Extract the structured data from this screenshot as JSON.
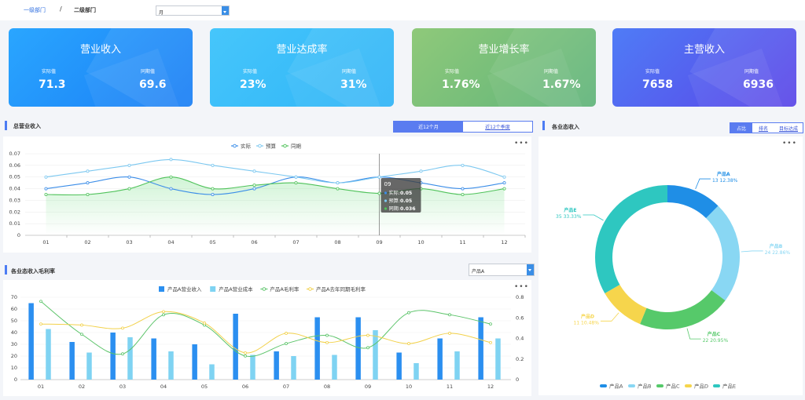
{
  "breadcrumb": {
    "level1": "一级部门",
    "sep": "/",
    "level2": "二级部门"
  },
  "period_select": {
    "value": "月"
  },
  "kpis": [
    {
      "title": "营业收入",
      "actual_label": "实际值",
      "yoy_label": "同期值",
      "actual": "71.3",
      "yoy": "69.6",
      "color_from": "#2aa6ff",
      "color_to": "#1a7ef5"
    },
    {
      "title": "营业达成率",
      "actual_label": "实际值",
      "yoy_label": "同期值",
      "actual": "23%",
      "yoy": "31%",
      "color_from": "#46c6fb",
      "color_to": "#2fb4f7"
    },
    {
      "title": "营业增长率",
      "actual_label": "实际值",
      "yoy_label": "同期值",
      "actual": "1.76%",
      "yoy": "1.67%",
      "color_from": "#8fc97a",
      "color_to": "#5fb47a"
    },
    {
      "title": "主营收入",
      "actual_label": "实际值",
      "yoy_label": "同期值",
      "actual": "7658",
      "yoy": "6936",
      "color_from": "#4f7cf6",
      "color_to": "#5a45e8"
    }
  ],
  "total_revenue": {
    "title": "总营业收入",
    "tabs": [
      {
        "label": "近12个月",
        "active": true
      },
      {
        "label": "近12个季度",
        "active": false
      }
    ],
    "more": "•••",
    "tooltip": {
      "title": "09",
      "items": [
        {
          "label": "实际",
          "value": "0.05"
        },
        {
          "label": "预算",
          "value": "0.05"
        },
        {
          "label": "同期",
          "value": "0.036"
        }
      ]
    }
  },
  "gross_margin": {
    "title": "各业态收入毛利率",
    "product_select": "产品A",
    "more": "•••"
  },
  "business_revenue": {
    "title": "各业态收入",
    "tabs": [
      {
        "label": "占比",
        "active": true
      },
      {
        "label": "排名",
        "active": false
      },
      {
        "label": "目标达成",
        "active": false
      }
    ],
    "more": "•••"
  },
  "chart_data": [
    {
      "type": "line",
      "title": "",
      "x": [
        "01",
        "02",
        "03",
        "04",
        "05",
        "06",
        "07",
        "08",
        "09",
        "10",
        "11",
        "12"
      ],
      "ylim": [
        0,
        0.07
      ],
      "yticks": [
        "0",
        "0.01",
        "0.02",
        "0.03",
        "0.04",
        "0.05",
        "0.06",
        "0.07"
      ],
      "legend": "top-center",
      "series": [
        {
          "name": "实际",
          "color": "#3b8de8",
          "values": [
            0.04,
            0.045,
            0.05,
            0.04,
            0.035,
            0.04,
            0.05,
            0.045,
            0.05,
            0.045,
            0.04,
            0.045
          ]
        },
        {
          "name": "预算",
          "color": "#7cc8f0",
          "values": [
            0.05,
            0.055,
            0.06,
            0.065,
            0.06,
            0.055,
            0.05,
            0.045,
            0.05,
            0.055,
            0.06,
            0.05
          ]
        },
        {
          "name": "同期",
          "color": "#4fc25a",
          "values": [
            0.035,
            0.035,
            0.04,
            0.05,
            0.04,
            0.043,
            0.045,
            0.04,
            0.036,
            0.04,
            0.035,
            0.04
          ]
        }
      ]
    },
    {
      "type": "bar",
      "title": "",
      "categories": [
        "01",
        "02",
        "03",
        "04",
        "05",
        "06",
        "07",
        "08",
        "09",
        "10",
        "11",
        "12"
      ],
      "ylim_left": [
        0,
        70
      ],
      "yticks_left": [
        "0",
        "10",
        "20",
        "30",
        "40",
        "50",
        "60",
        "70"
      ],
      "ylim_right": [
        0,
        0.8
      ],
      "yticks_right": [
        "0",
        "0.2",
        "0.4",
        "0.6",
        "0.8"
      ],
      "legend": "top-center",
      "series": [
        {
          "name": "产品A营业收入",
          "kind": "bar",
          "color": "#2b8ff0",
          "values": [
            65,
            32,
            40,
            35,
            30,
            56,
            24,
            53,
            53,
            23,
            35,
            53
          ]
        },
        {
          "name": "产品A营业成本",
          "kind": "bar",
          "color": "#7fd3f2",
          "values": [
            43,
            23,
            36,
            24,
            13,
            21,
            20,
            21,
            42,
            14,
            24,
            35
          ]
        },
        {
          "name": "产品A毛利率",
          "kind": "line",
          "color": "#5cc46a",
          "values": [
            0.76,
            0.44,
            0.25,
            0.63,
            0.53,
            0.23,
            0.35,
            0.43,
            0.31,
            0.65,
            0.63,
            0.54
          ]
        },
        {
          "name": "产品A去年同期毛利率",
          "kind": "line",
          "color": "#f2d14a",
          "values": [
            0.54,
            0.53,
            0.5,
            0.66,
            0.55,
            0.26,
            0.45,
            0.36,
            0.43,
            0.35,
            0.45,
            0.36
          ]
        }
      ]
    },
    {
      "type": "pie",
      "title": "",
      "legend": "bottom-center",
      "slices": [
        {
          "name": "产品A",
          "value": 13,
          "percent": "12.38%",
          "color": "#1f8ee6"
        },
        {
          "name": "产品B",
          "value": 24,
          "percent": "22.86%",
          "color": "#89d7f3"
        },
        {
          "name": "产品C",
          "value": 22,
          "percent": "20.95%",
          "color": "#56c96a"
        },
        {
          "name": "产品D",
          "value": 11,
          "percent": "10.48%",
          "color": "#f6d54c"
        },
        {
          "name": "产品E",
          "value": 35,
          "percent": "33.33%",
          "color": "#2ec7c0"
        }
      ]
    }
  ]
}
